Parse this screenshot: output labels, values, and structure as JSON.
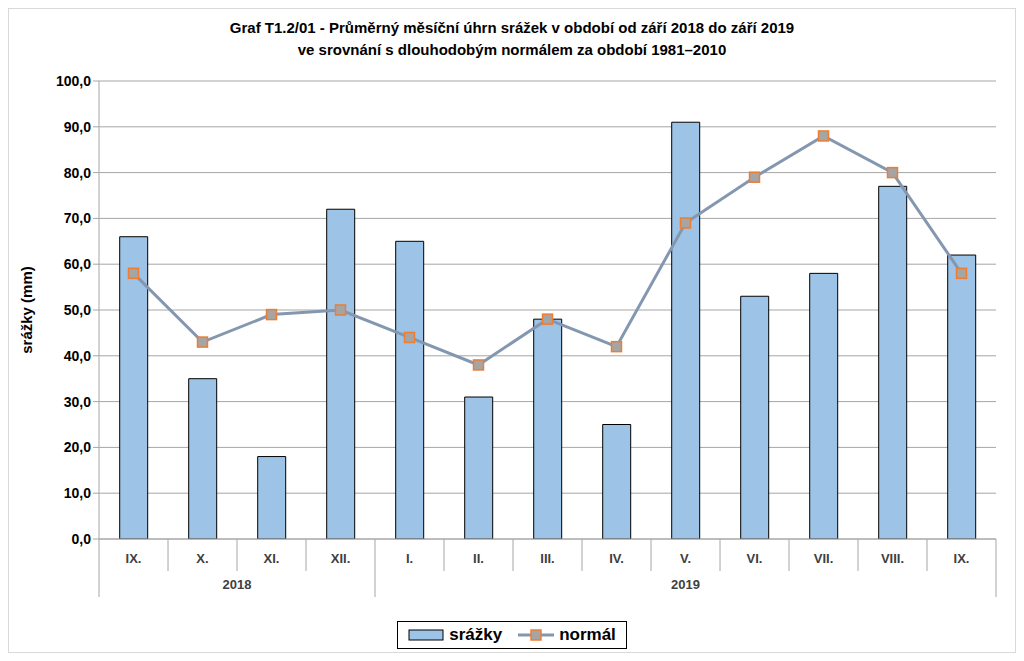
{
  "chart_data": {
    "type": "bar",
    "title": "Graf T1.2/01 - Průměrný měsíční úhrn srážek v období od září 2018 do září 2019",
    "subtitle": "ve srovnání s dlouhodobým normálem za období 1981–2010",
    "y_label": "srážky (mm)",
    "categories": [
      "IX.",
      "X.",
      "XI.",
      "XII.",
      "I.",
      "II.",
      "III.",
      "IV.",
      "V.",
      "VI.",
      "VII.",
      "VIII.",
      "IX."
    ],
    "category_groups": [
      {
        "label": "2018",
        "count": 4
      },
      {
        "label": "2019",
        "count": 9
      }
    ],
    "series": [
      {
        "name": "srážky",
        "type": "bar",
        "color": "#9dc3e6",
        "values": [
          66,
          35,
          18,
          72,
          65,
          31,
          48,
          25,
          91,
          53,
          58,
          77,
          62
        ]
      },
      {
        "name": "normál",
        "type": "line",
        "color": "#8497b0",
        "marker": "square",
        "values": [
          58,
          43,
          49,
          50,
          44,
          38,
          48,
          42,
          69,
          79,
          88,
          80,
          58
        ]
      }
    ],
    "ylim": [
      0,
      100
    ],
    "yticks": [
      {
        "value": 0,
        "label": "0,0"
      },
      {
        "value": 10,
        "label": "10,0"
      },
      {
        "value": 20,
        "label": "20,0"
      },
      {
        "value": 30,
        "label": "30,0"
      },
      {
        "value": 40,
        "label": "40,0"
      },
      {
        "value": 50,
        "label": "50,0"
      },
      {
        "value": 60,
        "label": "60,0"
      },
      {
        "value": 70,
        "label": "70,0"
      },
      {
        "value": 80,
        "label": "80,0"
      },
      {
        "value": 90,
        "label": "90,0"
      },
      {
        "value": 100,
        "label": "100,0"
      }
    ],
    "grid": true,
    "legend": "bottom"
  }
}
